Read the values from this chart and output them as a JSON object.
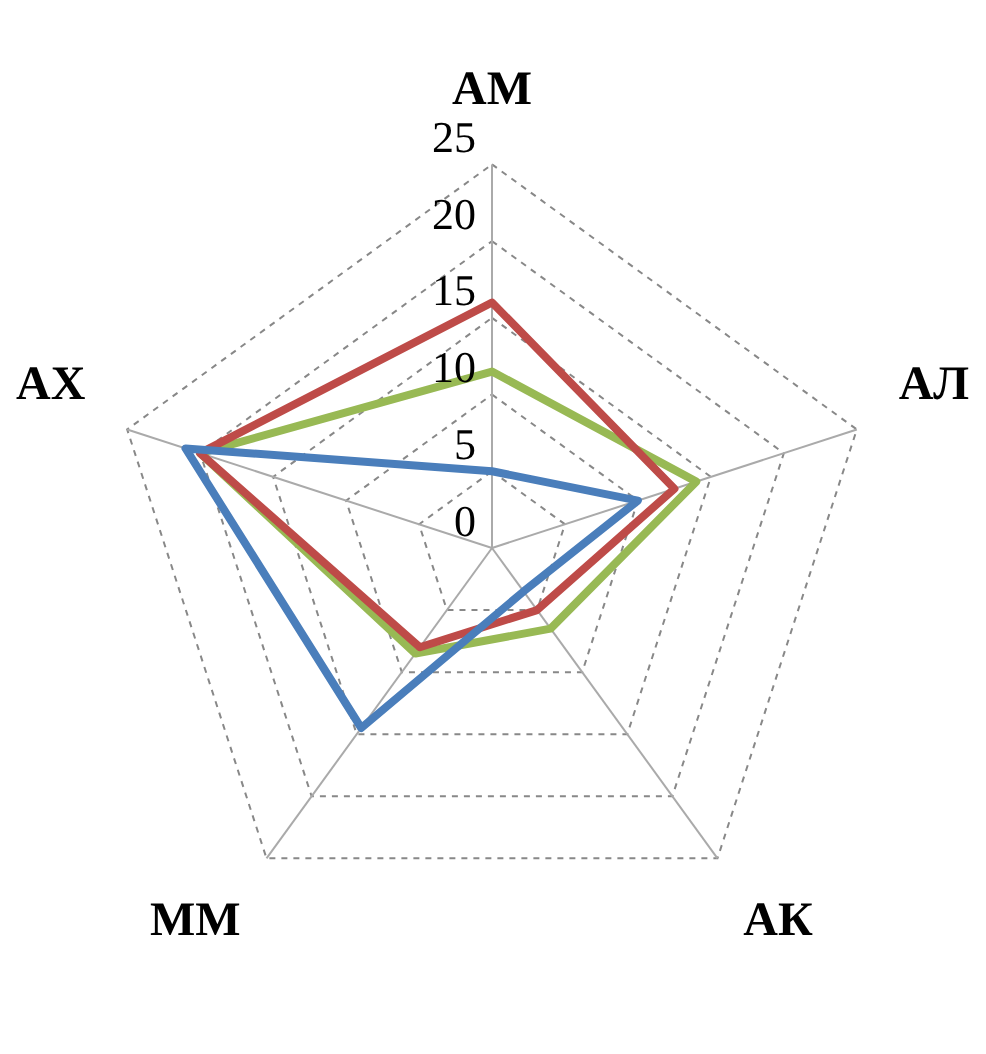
{
  "chart_data": {
    "type": "radar",
    "categories": [
      "АМ",
      "АЛ",
      "АК",
      "ММ",
      "АХ"
    ],
    "series": [
      {
        "color": "#4a7ebb",
        "values": [
          5,
          10,
          3.5,
          14.5,
          21
        ]
      },
      {
        "color": "#be4b48",
        "values": [
          16,
          12.5,
          5,
          8,
          20
        ]
      },
      {
        "color": "#98b954",
        "values": [
          11.5,
          14,
          6.5,
          8.5,
          20
        ]
      }
    ],
    "ylim": [
      0,
      25
    ],
    "yticks": [
      0,
      5,
      10,
      15,
      20,
      25
    ],
    "grid": true,
    "legend": false,
    "line_style": "solid"
  }
}
